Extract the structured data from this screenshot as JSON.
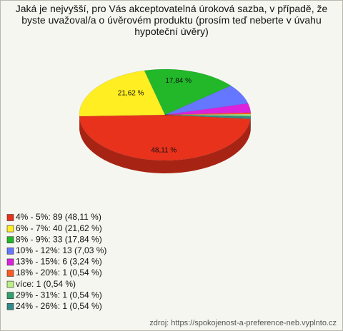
{
  "chart_data": {
    "type": "pie",
    "title": "Jaká je nejvyšší, pro Vás akceptovatelná úroková sazba, v případě, že byste uvažoval/a o úvěrovém produktu (prosím teď neberte v úvahu hypoteční úvěry)",
    "categories": [
      "4% - 5%: 89 (48,11 %)",
      "6% - 7%: 40 (21,62 %)",
      "8% - 9%: 33 (17,84 %)",
      "10% - 12%: 13 (7,03 %)",
      "13% - 15%: 6 (3,24 %)",
      "18% - 20%: 1 (0,54 %)",
      "více: 1 (0,54 %)",
      "29% - 31%: 1 (0,54 %)",
      "24% - 26%: 1 (0,54 %)"
    ],
    "values": [
      48.11,
      21.62,
      17.84,
      7.03,
      3.24,
      0.54,
      0.54,
      0.54,
      0.54
    ],
    "value_labels": [
      "48,11 %",
      "21,62 %",
      "17,84 %",
      null,
      null,
      null,
      null,
      null,
      null
    ],
    "colors": [
      "#e8321c",
      "#ffee22",
      "#22b82a",
      "#6677ff",
      "#dd22dd",
      "#ff5a22",
      "#bbee88",
      "#33a070",
      "#338a8a"
    ],
    "source": "zdroj: https://spokojenost-a-preference-neb.vyplnto.cz"
  }
}
